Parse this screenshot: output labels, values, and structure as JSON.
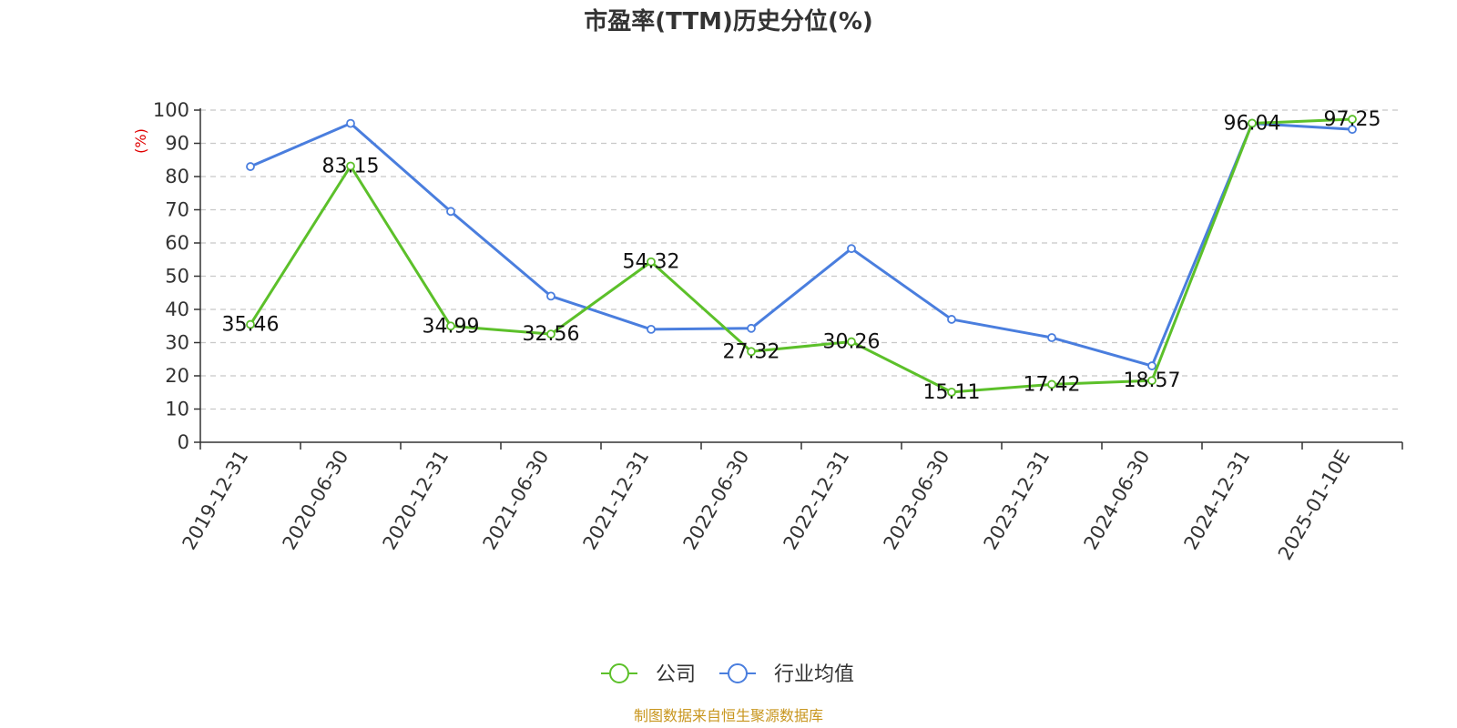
{
  "chart_data": {
    "type": "line",
    "title": "市盈率(TTM)历史分位(%)",
    "ylabel": "(%)",
    "ylim": [
      0,
      100
    ],
    "yticks": [
      0,
      10,
      20,
      30,
      40,
      50,
      60,
      70,
      80,
      90,
      100
    ],
    "categories": [
      "2019-12-31",
      "2020-06-30",
      "2020-12-31",
      "2021-06-30",
      "2021-12-31",
      "2022-06-30",
      "2022-12-31",
      "2023-06-30",
      "2023-12-31",
      "2024-06-30",
      "2024-12-31",
      "2025-01-10E"
    ],
    "grid": true,
    "legend_position": "bottom-center",
    "series": [
      {
        "name": "公司",
        "color": "#5cc02a",
        "values": [
          35.46,
          83.15,
          34.99,
          32.56,
          54.32,
          27.32,
          30.26,
          15.11,
          17.42,
          18.57,
          96.04,
          97.25
        ],
        "labels": [
          "35.46",
          "83.15",
          "34.99",
          "32.56",
          "54.32",
          "27.32",
          "30.26",
          "15.11",
          "17.42",
          "18.57",
          "96.04",
          "97.25"
        ]
      },
      {
        "name": "行业均值",
        "color": "#4a7ede",
        "values": [
          83.0,
          96.0,
          69.5,
          44.0,
          34.0,
          34.3,
          58.3,
          37.0,
          31.5,
          23.0,
          96.0,
          94.2
        ]
      }
    ]
  },
  "source": "制图数据来自恒生聚源数据库"
}
